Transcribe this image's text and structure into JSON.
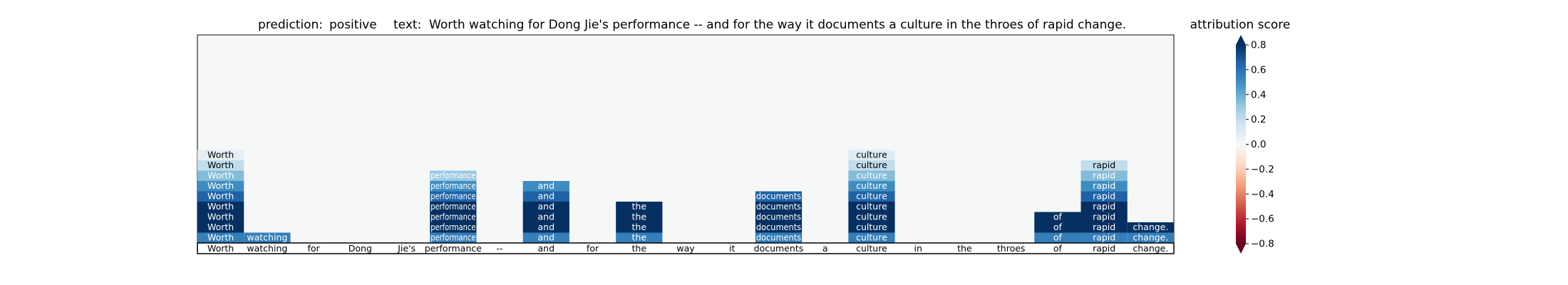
{
  "chart_data": {
    "type": "heatmap",
    "title": {
      "prediction_label": "prediction:",
      "prediction_value": "positive",
      "text_label": "text:",
      "text_value": "Worth watching for Dong Jie's performance -- and for the way it documents a culture in the throes of rapid change."
    },
    "tokens": [
      "Worth",
      "watching",
      "for",
      "Dong",
      "Jie's",
      "performance",
      "--",
      "and",
      "for",
      "the",
      "way",
      "it",
      "documents",
      "a",
      "culture",
      "in",
      "the",
      "throes",
      "of",
      "rapid",
      "change."
    ],
    "rows": [
      [
        0.55,
        0.55,
        null,
        null,
        null,
        0.55,
        null,
        0.55,
        null,
        0.55,
        null,
        null,
        0.55,
        null,
        0.55,
        null,
        null,
        null,
        0.55,
        0.55,
        0.55
      ],
      [
        0.8,
        null,
        null,
        null,
        null,
        0.8,
        null,
        0.8,
        null,
        0.8,
        null,
        null,
        0.8,
        null,
        0.8,
        null,
        null,
        null,
        0.8,
        0.8,
        0.8
      ],
      [
        0.95,
        null,
        null,
        null,
        null,
        0.95,
        null,
        0.95,
        null,
        0.95,
        null,
        null,
        0.95,
        null,
        0.95,
        null,
        null,
        null,
        0.95,
        0.95,
        null
      ],
      [
        0.8,
        null,
        null,
        null,
        null,
        0.8,
        null,
        0.8,
        null,
        0.8,
        null,
        null,
        0.8,
        null,
        0.8,
        null,
        null,
        null,
        null,
        0.8,
        null
      ],
      [
        0.65,
        null,
        null,
        null,
        null,
        0.65,
        null,
        0.65,
        null,
        null,
        null,
        null,
        0.65,
        null,
        0.65,
        null,
        null,
        null,
        null,
        0.65,
        null
      ],
      [
        0.5,
        null,
        null,
        null,
        null,
        0.5,
        null,
        0.5,
        null,
        null,
        null,
        null,
        null,
        null,
        0.5,
        null,
        null,
        null,
        null,
        0.5,
        null
      ],
      [
        0.35,
        null,
        null,
        null,
        null,
        0.3,
        null,
        null,
        null,
        null,
        null,
        null,
        null,
        null,
        0.35,
        null,
        null,
        null,
        null,
        0.35,
        null
      ],
      [
        0.2,
        null,
        null,
        null,
        null,
        null,
        null,
        null,
        null,
        null,
        null,
        null,
        null,
        null,
        0.2,
        null,
        null,
        null,
        null,
        0.2,
        null
      ],
      [
        0.08,
        null,
        null,
        null,
        null,
        null,
        null,
        null,
        null,
        null,
        null,
        null,
        null,
        null,
        0.1,
        null,
        null,
        null,
        null,
        null,
        null
      ]
    ],
    "colorbar": {
      "label": "attribution score",
      "vmin": -0.8,
      "vmax": 0.8,
      "ticks": [
        -0.8,
        -0.6,
        -0.4,
        -0.2,
        0.0,
        0.2,
        0.4,
        0.6,
        0.8
      ],
      "tick_labels": [
        "−0.8",
        "−0.6",
        "−0.4",
        "−0.2",
        "0.0",
        "0.2",
        "0.4",
        "0.6",
        "0.8"
      ],
      "colormap": "RdBu",
      "extend": "both"
    },
    "grid": false
  }
}
